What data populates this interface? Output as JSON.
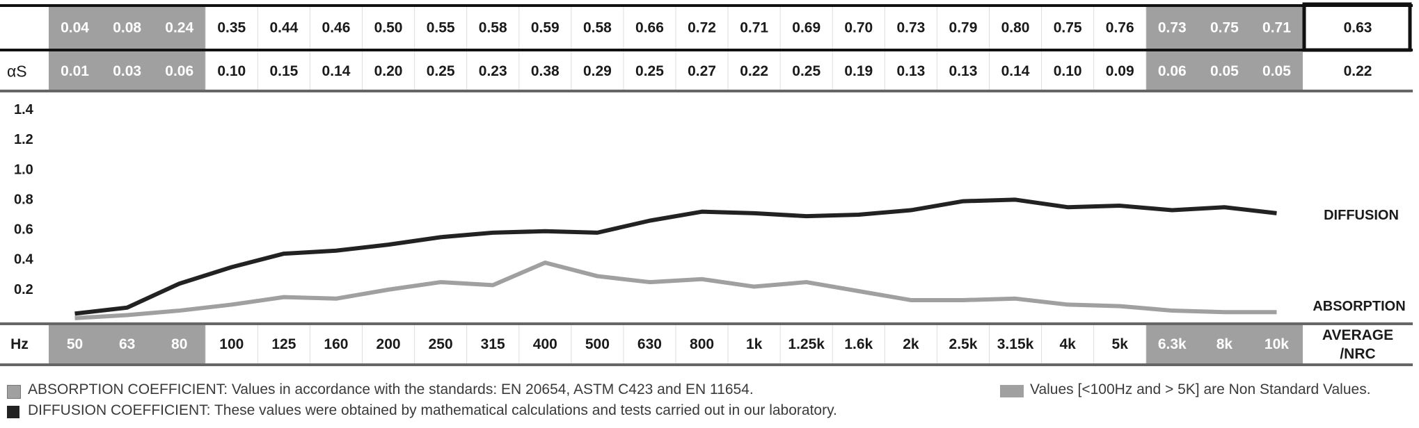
{
  "chart_data": {
    "type": "line",
    "x_label": "Hz",
    "y_row_label": "αS",
    "average_label": "AVERAGE /NRC",
    "categories": [
      "50",
      "63",
      "80",
      "100",
      "125",
      "160",
      "200",
      "250",
      "315",
      "400",
      "500",
      "630",
      "800",
      "1k",
      "1.25k",
      "1.6k",
      "2k",
      "2.5k",
      "3.15k",
      "4k",
      "5k",
      "6.3k",
      "8k",
      "10k"
    ],
    "non_standard_indices": [
      0,
      1,
      2,
      21,
      22,
      23
    ],
    "diffusion_values": [
      0.04,
      0.08,
      0.24,
      0.35,
      0.44,
      0.46,
      0.5,
      0.55,
      0.58,
      0.59,
      0.58,
      0.66,
      0.72,
      0.71,
      0.69,
      0.7,
      0.73,
      0.79,
      0.8,
      0.75,
      0.76,
      0.73,
      0.75,
      0.71
    ],
    "absorption_values": [
      0.01,
      0.03,
      0.06,
      0.1,
      0.15,
      0.14,
      0.2,
      0.25,
      0.23,
      0.38,
      0.29,
      0.25,
      0.27,
      0.22,
      0.25,
      0.19,
      0.13,
      0.13,
      0.14,
      0.1,
      0.09,
      0.06,
      0.05,
      0.05
    ],
    "diffusion_display": [
      "0.04",
      "0.08",
      "0.24",
      "0.35",
      "0.44",
      "0.46",
      "0.50",
      "0.55",
      "0.58",
      "0.59",
      "0.58",
      "0.66",
      "0.72",
      "0.71",
      "0.69",
      "0.70",
      "0.73",
      "0.79",
      "0.80",
      "0.75",
      "0.76",
      "0.73",
      "0.75",
      "0.71"
    ],
    "absorption_display": [
      "0.01",
      "0.03",
      "0.06",
      "0.10",
      "0.15",
      "0.14",
      "0.20",
      "0.25",
      "0.23",
      "0.38",
      "0.29",
      "0.25",
      "0.27",
      "0.22",
      "0.25",
      "0.19",
      "0.13",
      "0.13",
      "0.14",
      "0.10",
      "0.09",
      "0.06",
      "0.05",
      "0.05"
    ],
    "diffusion_average": "0.63",
    "absorption_average": "0.22",
    "y_ticks": [
      {
        "value": 0.2,
        "label": "0.2"
      },
      {
        "value": 0.4,
        "label": "0.4"
      },
      {
        "value": 0.6,
        "label": "0.6"
      },
      {
        "value": 0.8,
        "label": "0.8"
      },
      {
        "value": 1.0,
        "label": "1.0"
      },
      {
        "value": 1.2,
        "label": "1.2"
      },
      {
        "value": 1.4,
        "label": "1.4"
      }
    ],
    "ylim": [
      0,
      1.4
    ],
    "series": [
      {
        "name": "DIFFUSION",
        "color": "#222222"
      },
      {
        "name": "ABSORPTION",
        "color": "#a0a0a0"
      }
    ],
    "colors": {
      "non_standard_bg": "#a0a0a0",
      "rule": "#666666",
      "text": "#1a1a1a"
    }
  },
  "legend": {
    "absorption_text": "ABSORPTION COEFFICIENT: Values in accordance with the standards: EN 20654, ASTM C423 and EN 11654.",
    "diffusion_text": "DIFFUSION COEFFICIENT: These values were obtained by mathematical calculations and tests carried out in our laboratory.",
    "non_standard_text": "Values [<100Hz and > 5K] are Non Standard Values.",
    "colors": {
      "absorption": "#a0a0a0",
      "diffusion": "#222222",
      "non_standard": "#a0a0a0"
    }
  }
}
